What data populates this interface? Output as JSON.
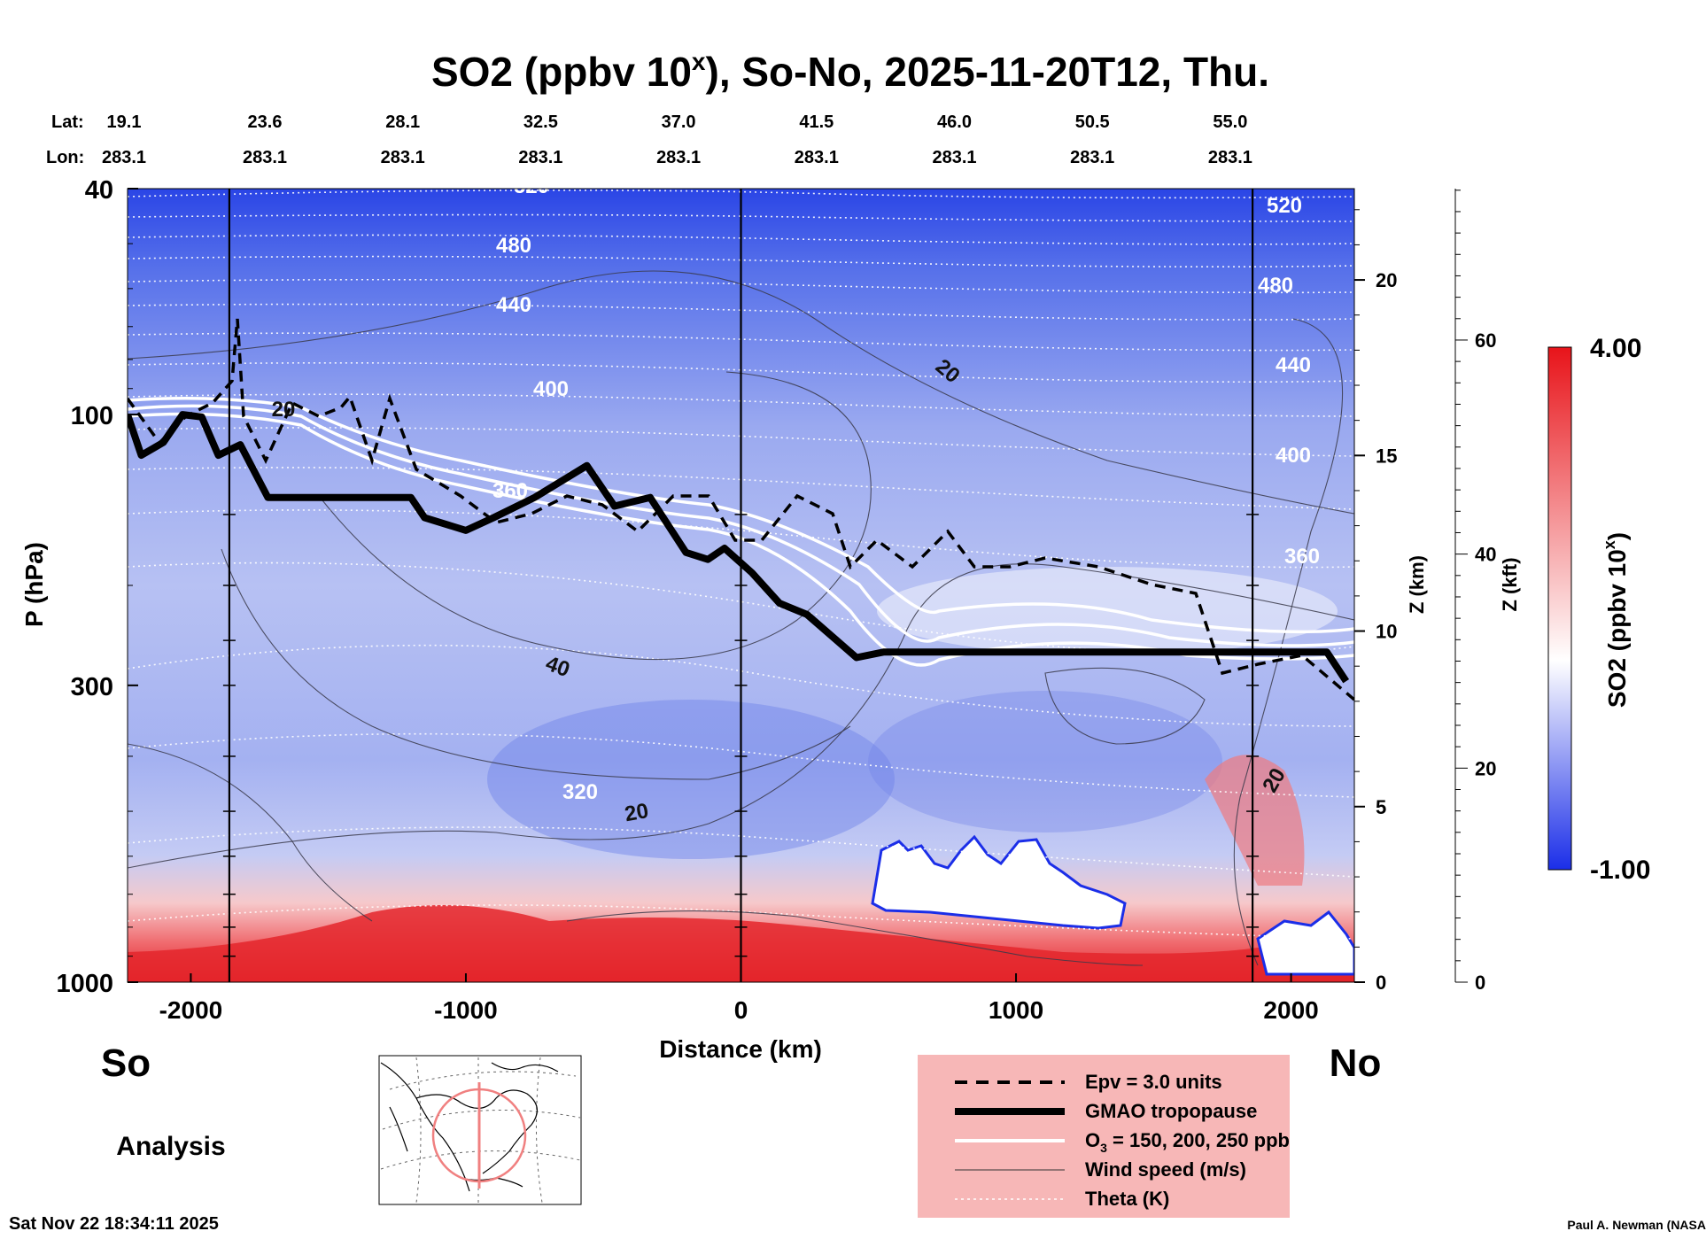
{
  "chart_data": {
    "type": "heatmap",
    "title": "SO2 (ppbv 10^x), So-No, 2025-11-20T12, Thu.",
    "title_main": "SO2 (ppbv 10",
    "title_sup": "x",
    "title_rest": "), So-No, 2025-11-20T12, Thu.",
    "xlabel": "Distance (km)",
    "ylabel": "P (hPa)",
    "y2label": "Z (km)",
    "y3label": "Z (kft)",
    "xlim": [
      -2230,
      2230
    ],
    "ylim_hpa": [
      1000,
      40
    ],
    "x_ticks": [
      -2000,
      -1000,
      0,
      1000,
      2000
    ],
    "x_tick_labels": [
      "-2000",
      "-1000",
      "0",
      "1000",
      "2000"
    ],
    "y_ticks": [
      1000,
      300,
      100,
      40
    ],
    "y_tick_labels": [
      "1000",
      "300",
      "100",
      "40"
    ],
    "z_km_ticks": [
      0,
      5,
      10,
      15,
      20
    ],
    "z_kft_ticks": [
      0,
      20,
      40,
      60
    ],
    "section_lines_km": [
      -1860,
      0,
      1860
    ],
    "lat_label": "Lat:",
    "lon_label": "Lon:",
    "lats": [
      "19.1",
      "23.6",
      "28.1",
      "32.5",
      "37.0",
      "41.5",
      "46.0",
      "50.5",
      "55.0"
    ],
    "lons": [
      "283.1",
      "283.1",
      "283.1",
      "283.1",
      "283.1",
      "283.1",
      "283.1",
      "283.1",
      "283.1"
    ],
    "colorbar": {
      "min_label": "-1.00",
      "max_label": "4.00",
      "label_main": "SO2 (ppbv 10",
      "label_sup": "x",
      "label_rest": ")",
      "low_color": "#1b2ee8",
      "mid_color": "#ffffff",
      "high_color": "#e8141a"
    },
    "theta_labels": [
      "520",
      "480",
      "440",
      "400",
      "360",
      "320"
    ],
    "wind_labels": [
      "20",
      "40"
    ],
    "tropopause_hpa": [
      [
        -2230,
        100
      ],
      [
        -2180,
        118
      ],
      [
        -2100,
        112
      ],
      [
        -2030,
        100
      ],
      [
        -1960,
        101
      ],
      [
        -1900,
        118
      ],
      [
        -1820,
        113
      ],
      [
        -1720,
        140
      ],
      [
        -1500,
        140
      ],
      [
        -1200,
        140
      ],
      [
        -1150,
        152
      ],
      [
        -1000,
        160
      ],
      [
        -900,
        152
      ],
      [
        -750,
        140
      ],
      [
        -560,
        123
      ],
      [
        -460,
        145
      ],
      [
        -330,
        140
      ],
      [
        -200,
        175
      ],
      [
        -120,
        180
      ],
      [
        -60,
        172
      ],
      [
        40,
        190
      ],
      [
        140,
        215
      ],
      [
        240,
        225
      ],
      [
        340,
        248
      ],
      [
        420,
        268
      ],
      [
        520,
        262
      ],
      [
        1200,
        262
      ],
      [
        1500,
        262
      ],
      [
        1850,
        262
      ],
      [
        2130,
        262
      ],
      [
        2200,
        295
      ]
    ]
  },
  "axes_labels": {
    "so": "So",
    "no": "No",
    "analysis": "Analysis"
  },
  "legend": {
    "epv": "Epv = 3.0 units",
    "tropopause": "GMAO tropopause",
    "ozone_main": "O",
    "ozone_sub": "3",
    "ozone_rest": " = 150, 200, 250 ppb",
    "wind": "Wind speed (m/s)",
    "theta": "Theta (K)"
  },
  "footer": {
    "timestamp": "Sat Nov 22 18:34:11 2025",
    "credit": "Paul A. Newman (NASA"
  }
}
